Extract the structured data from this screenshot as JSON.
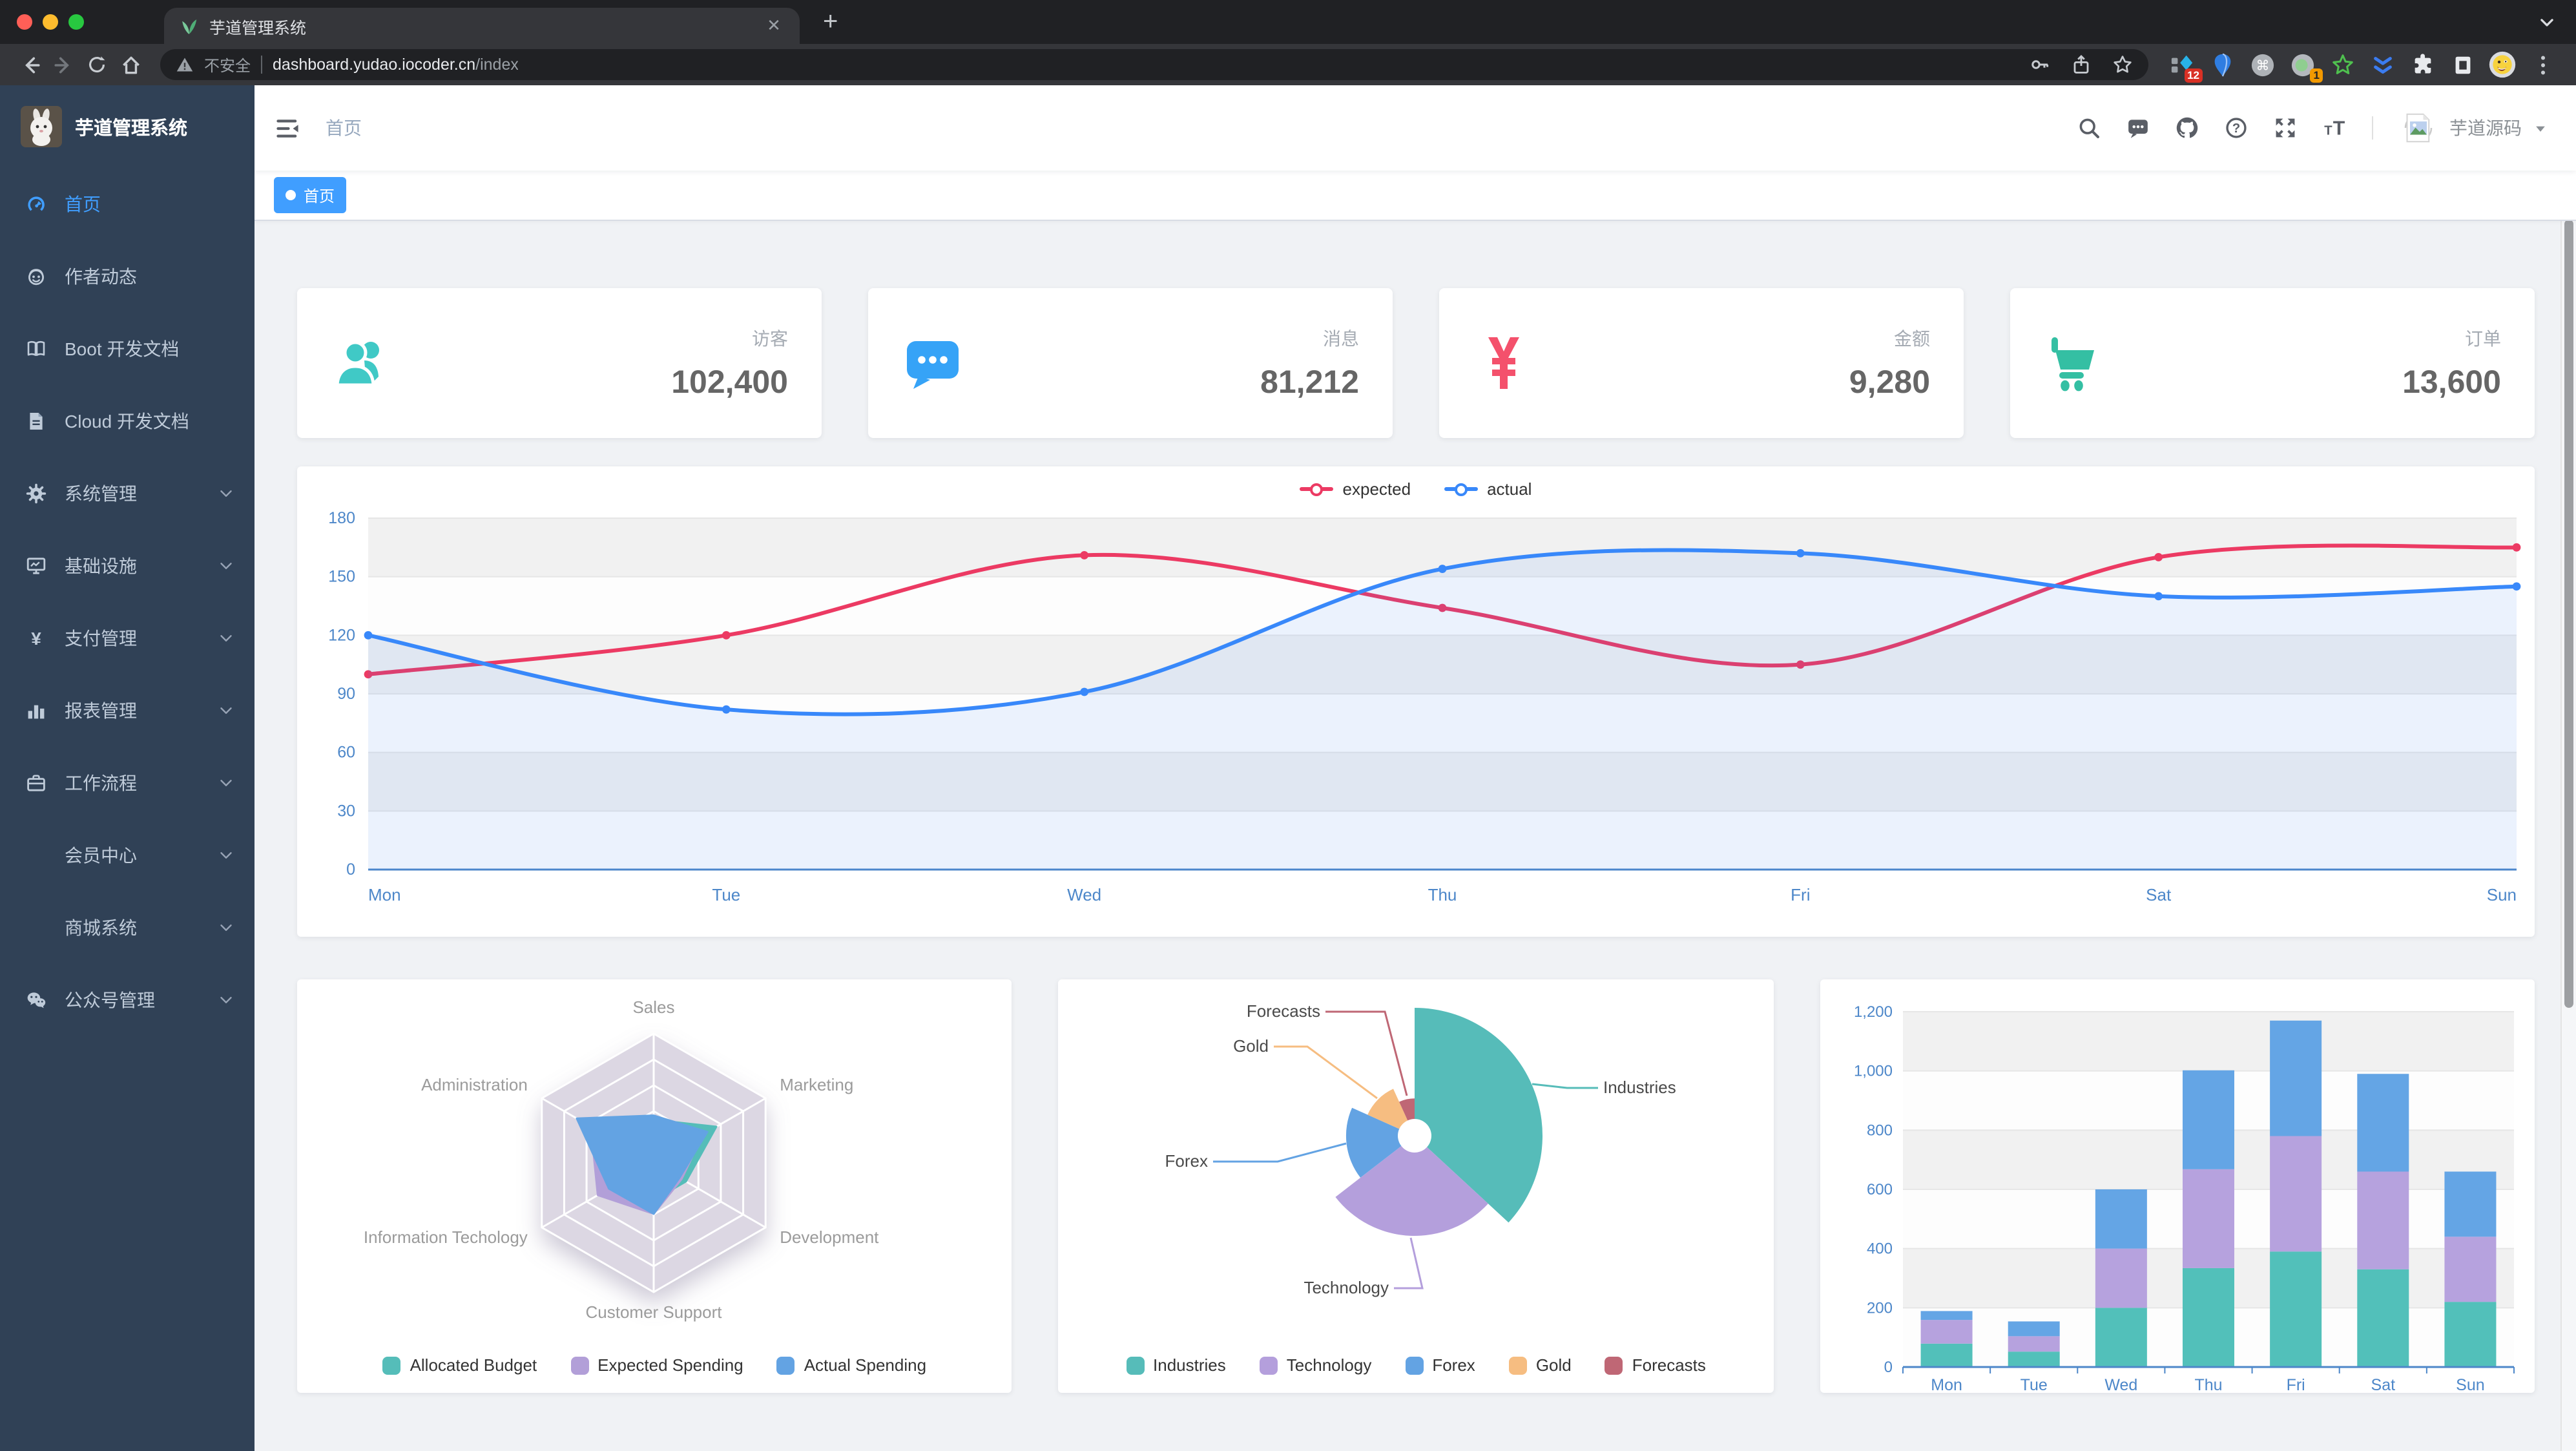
{
  "browser": {
    "tab": {
      "title": "芋道管理系统",
      "close_label": "✕"
    },
    "new_tab_button": "+",
    "toolbar_icons": [
      "back-icon",
      "forward-icon",
      "reload-icon",
      "home-icon"
    ],
    "url": {
      "security_label": "不安全",
      "host": "dashboard.yudao.iocoder.cn",
      "path": "/index"
    },
    "urlbar_icons": [
      "key-icon",
      "share-icon",
      "star-icon"
    ],
    "extensions": [
      {
        "icon": "diamond-extension-icon",
        "badge": "12"
      },
      {
        "icon": "balloon-extension-icon"
      },
      {
        "icon": "command-extension-icon"
      },
      {
        "icon": "record-extension-icon",
        "badge": "1"
      },
      {
        "icon": "star-extension-icon"
      },
      {
        "icon": "chevrons-extension-icon"
      },
      {
        "icon": "puzzle-icon"
      },
      {
        "icon": "reading-list-icon"
      },
      {
        "icon": "profile-avatar-icon"
      },
      {
        "icon": "kebab-menu-icon"
      }
    ]
  },
  "sidebar": {
    "logo_title": "芋道管理系统",
    "items": [
      {
        "name": "home",
        "label": "首页",
        "icon": "dashboard-icon",
        "active": true
      },
      {
        "name": "author-news",
        "label": "作者动态",
        "icon": "people-icon"
      },
      {
        "name": "boot-docs",
        "label": "Boot 开发文档",
        "icon": "book-icon"
      },
      {
        "name": "cloud-docs",
        "label": "Cloud 开发文档",
        "icon": "document-icon"
      },
      {
        "name": "system-management",
        "label": "系统管理",
        "icon": "gear-icon",
        "expandable": true
      },
      {
        "name": "infrastructure",
        "label": "基础设施",
        "icon": "monitor-icon",
        "expandable": true
      },
      {
        "name": "payment-management",
        "label": "支付管理",
        "icon": "yen-icon",
        "expandable": true
      },
      {
        "name": "report-management",
        "label": "报表管理",
        "icon": "chart-bar-icon",
        "expandable": true
      },
      {
        "name": "workflow",
        "label": "工作流程",
        "icon": "briefcase-icon",
        "expandable": true
      },
      {
        "name": "member-center",
        "label": "会员中心",
        "expandable": true,
        "child": true
      },
      {
        "name": "mall-system",
        "label": "商城系统",
        "expandable": true,
        "child": true
      },
      {
        "name": "official-account",
        "label": "公众号管理",
        "icon": "wechat-icon",
        "expandable": true
      }
    ]
  },
  "navbar": {
    "breadcrumb": "首页",
    "icons": [
      "search-icon",
      "message-icon",
      "github-icon",
      "help-icon",
      "fullscreen-icon",
      "font-size-icon"
    ],
    "username": "芋道源码"
  },
  "tags": [
    {
      "label": "首页",
      "active": true
    }
  ],
  "cards": [
    {
      "label": "访客",
      "value": "102,400",
      "icon": "people-group-icon",
      "color": "#40c9c6"
    },
    {
      "label": "消息",
      "value": "81,212",
      "icon": "chat-bubble-icon",
      "color": "#36a3f7"
    },
    {
      "label": "金额",
      "value": "9,280",
      "icon": "yen-card-icon",
      "color": "#f4516c"
    },
    {
      "label": "订单",
      "value": "13,600",
      "icon": "cart-icon",
      "color": "#34bfa3"
    }
  ],
  "chart_data": [
    {
      "type": "line",
      "x": [
        "Mon",
        "Tue",
        "Wed",
        "Thu",
        "Fri",
        "Sat",
        "Sun"
      ],
      "ylim": [
        0,
        180
      ],
      "yticks": [
        0,
        30,
        60,
        90,
        120,
        150,
        180
      ],
      "ytick_labels": [
        "0",
        "30",
        "60",
        "90",
        "120",
        "150",
        "180"
      ],
      "legend_position": "top",
      "grid": "split-bands",
      "series": [
        {
          "name": "expected",
          "color": "#ec3a63",
          "values": [
            100,
            120,
            161,
            134,
            105,
            160,
            165
          ]
        },
        {
          "name": "actual",
          "color": "#3888fa",
          "values": [
            120,
            82,
            91,
            154,
            162,
            140,
            145
          ],
          "area": true
        }
      ]
    },
    {
      "type": "radar",
      "indicators": [
        {
          "name": "Sales",
          "max": 15000
        },
        {
          "name": "Administration",
          "max": 16000
        },
        {
          "name": "Information Techology",
          "max": 30000
        },
        {
          "name": "Customer Support",
          "max": 38000
        },
        {
          "name": "Development",
          "max": 52000
        },
        {
          "name": "Marketing",
          "max": 25000
        }
      ],
      "legend_position": "bottom",
      "series": [
        {
          "name": "Allocated Budget",
          "color": "#55bdb9",
          "values": [
            5000,
            7000,
            12000,
            11000,
            15000,
            14000
          ]
        },
        {
          "name": "Expected Spending",
          "color": "#b29fd8",
          "values": [
            4000,
            9000,
            15000,
            15000,
            13000,
            11000
          ]
        },
        {
          "name": "Actual Spending",
          "color": "#63a3e3",
          "values": [
            5500,
            11000,
            12000,
            15000,
            12000,
            12000
          ]
        }
      ]
    },
    {
      "type": "pie",
      "rose_type": "radius",
      "legend_position": "bottom",
      "slices": [
        {
          "name": "Industries",
          "value": 320,
          "color": "#56bcb9"
        },
        {
          "name": "Technology",
          "value": 240,
          "color": "#b49fdc"
        },
        {
          "name": "Forex",
          "value": 149,
          "color": "#63a3e3"
        },
        {
          "name": "Gold",
          "value": 100,
          "color": "#f6bd81"
        },
        {
          "name": "Forecasts",
          "value": 59,
          "color": "#bf6775"
        }
      ]
    },
    {
      "type": "bar",
      "stacked": true,
      "categories": [
        "Mon",
        "Tue",
        "Wed",
        "Thu",
        "Fri",
        "Sat",
        "Sun"
      ],
      "ylim": [
        0,
        1200
      ],
      "yticks": [
        0,
        200,
        400,
        600,
        800,
        1000,
        1200
      ],
      "ytick_labels": [
        "0",
        "200",
        "400",
        "600",
        "800",
        "1,000",
        "1,200"
      ],
      "series": [
        {
          "color": "#52c0ba",
          "values": [
            79,
            52,
            200,
            334,
            390,
            330,
            220
          ]
        },
        {
          "color": "#b6a2de",
          "values": [
            80,
            52,
            200,
            334,
            390,
            330,
            220
          ]
        },
        {
          "color": "#64a5e5",
          "values": [
            30,
            50,
            200,
            334,
            390,
            330,
            220
          ]
        }
      ]
    }
  ]
}
